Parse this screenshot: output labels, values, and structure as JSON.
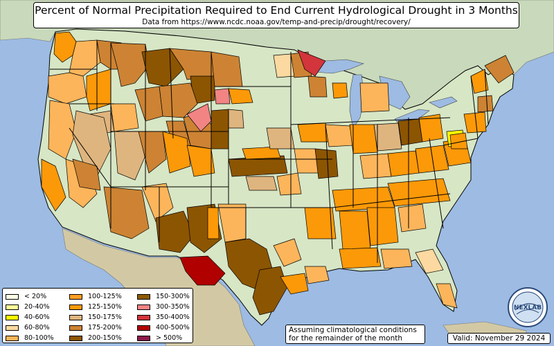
{
  "title": "Percent of Normal Precipitation Required to End Current Hydrological Drought in 3 Months",
  "subtitle": "Data from https://www.ncdc.noaa.gov/temp-and-precip/drought/recovery/",
  "note_line1": "Assuming climatological conditions",
  "note_line2": "for the remainder of the month",
  "valid": "Valid: November 29 2024",
  "logo_text": "NEXLAB",
  "colors": {
    "ocean": "#9dbbe3",
    "land": "#d7e6c5",
    "mexico": "#d2c9a4",
    "canada": "#c9d9bb",
    "lakes": "#9dbbe3"
  },
  "legend": [
    {
      "label": "< 20%",
      "color": "#ffffe6"
    },
    {
      "label": "20-40%",
      "color": "#ffff99"
    },
    {
      "label": "40-60%",
      "color": "#ffff00"
    },
    {
      "label": "60-80%",
      "color": "#fcd9a0"
    },
    {
      "label": "80-100%",
      "color": "#fdb55b"
    },
    {
      "label": "100-125%",
      "color": "#fe9d22"
    },
    {
      "label": "125-150%",
      "color": "#fc9908"
    },
    {
      "label": "150-175%",
      "color": "#dfb57f"
    },
    {
      "label": "175-200%",
      "color": "#cd8333"
    },
    {
      "label": "200-150%",
      "color": "#8c5502"
    },
    {
      "label": "150-300%",
      "color": "#8c5a00"
    },
    {
      "label": "300-350%",
      "color": "#f28484"
    },
    {
      "label": "350-400%",
      "color": "#d2353b"
    },
    {
      "label": "400-500%",
      "color": "#b10000"
    },
    {
      "label": "> 500%",
      "color": "#8c1a4b"
    }
  ]
}
